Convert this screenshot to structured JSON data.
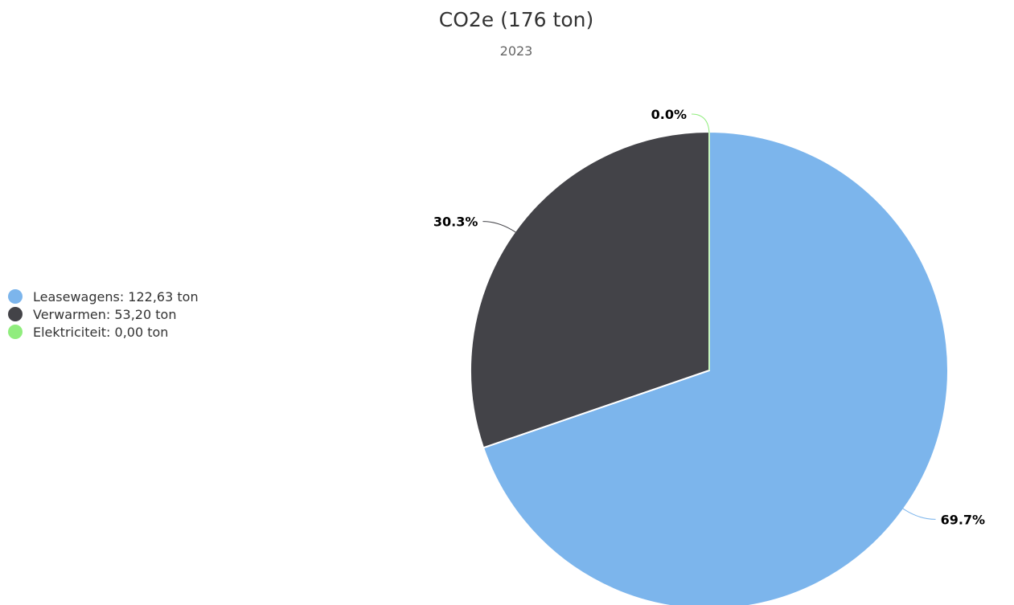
{
  "chart_data": {
    "type": "pie",
    "title": "CO2e (176 ton)",
    "subtitle": "2023",
    "legend_position": "left",
    "slices": [
      {
        "name": "Leasewagens",
        "value": 122.63,
        "legend_label": "Leasewagens: 122,63 ton",
        "percent_label": "69.7%",
        "color": "#7cb5ec"
      },
      {
        "name": "Verwarmen",
        "value": 53.2,
        "legend_label": "Verwarmen: 53,20 ton",
        "percent_label": "30.3%",
        "color": "#434348"
      },
      {
        "name": "Elektriciteit",
        "value": 0.0,
        "legend_label": "Elektriciteit: 0,00 ton",
        "percent_label": "0.0%",
        "color": "#90ed7d"
      }
    ]
  }
}
